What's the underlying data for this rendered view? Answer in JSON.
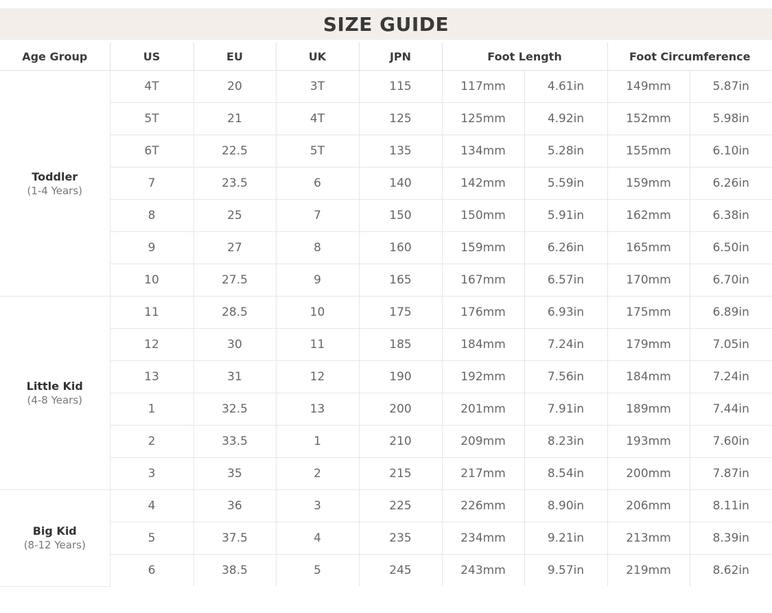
{
  "title": "SIZE GUIDE",
  "headers": [
    "Age Group",
    "US",
    "EU",
    "UK",
    "JPN",
    "Foot Length",
    "Foot Circumference"
  ],
  "groups": [
    {
      "name": "Toddler",
      "ages": "(1-4 Years)",
      "rows": [
        [
          "4T",
          "20",
          "3T",
          "115",
          "117mm",
          "4.61in",
          "149mm",
          "5.87in"
        ],
        [
          "5T",
          "21",
          "4T",
          "125",
          "125mm",
          "4.92in",
          "152mm",
          "5.98in"
        ],
        [
          "6T",
          "22.5",
          "5T",
          "135",
          "134mm",
          "5.28in",
          "155mm",
          "6.10in"
        ],
        [
          "7",
          "23.5",
          "6",
          "140",
          "142mm",
          "5.59in",
          "159mm",
          "6.26in"
        ],
        [
          "8",
          "25",
          "7",
          "150",
          "150mm",
          "5.91in",
          "162mm",
          "6.38in"
        ],
        [
          "9",
          "27",
          "8",
          "160",
          "159mm",
          "6.26in",
          "165mm",
          "6.50in"
        ],
        [
          "10",
          "27.5",
          "9",
          "165",
          "167mm",
          "6.57in",
          "170mm",
          "6.70in"
        ]
      ]
    },
    {
      "name": "Little Kid",
      "ages": "(4-8 Years)",
      "rows": [
        [
          "11",
          "28.5",
          "10",
          "175",
          "176mm",
          "6.93in",
          "175mm",
          "6.89in"
        ],
        [
          "12",
          "30",
          "11",
          "185",
          "184mm",
          "7.24in",
          "179mm",
          "7.05in"
        ],
        [
          "13",
          "31",
          "12",
          "190",
          "192mm",
          "7.56in",
          "184mm",
          "7.24in"
        ],
        [
          "1",
          "32.5",
          "13",
          "200",
          "201mm",
          "7.91in",
          "189mm",
          "7.44in"
        ],
        [
          "2",
          "33.5",
          "1",
          "210",
          "209mm",
          "8.23in",
          "193mm",
          "7.60in"
        ],
        [
          "3",
          "35",
          "2",
          "215",
          "217mm",
          "8.54in",
          "200mm",
          "7.87in"
        ]
      ]
    },
    {
      "name": "Big Kid",
      "ages": "(8-12 Years)",
      "rows": [
        [
          "4",
          "36",
          "3",
          "225",
          "226mm",
          "8.90in",
          "206mm",
          "8.11in"
        ],
        [
          "5",
          "37.5",
          "4",
          "235",
          "234mm",
          "9.21in",
          "213mm",
          "8.39in"
        ],
        [
          "6",
          "38.5",
          "5",
          "245",
          "243mm",
          "9.57in",
          "219mm",
          "8.62in"
        ]
      ]
    }
  ]
}
